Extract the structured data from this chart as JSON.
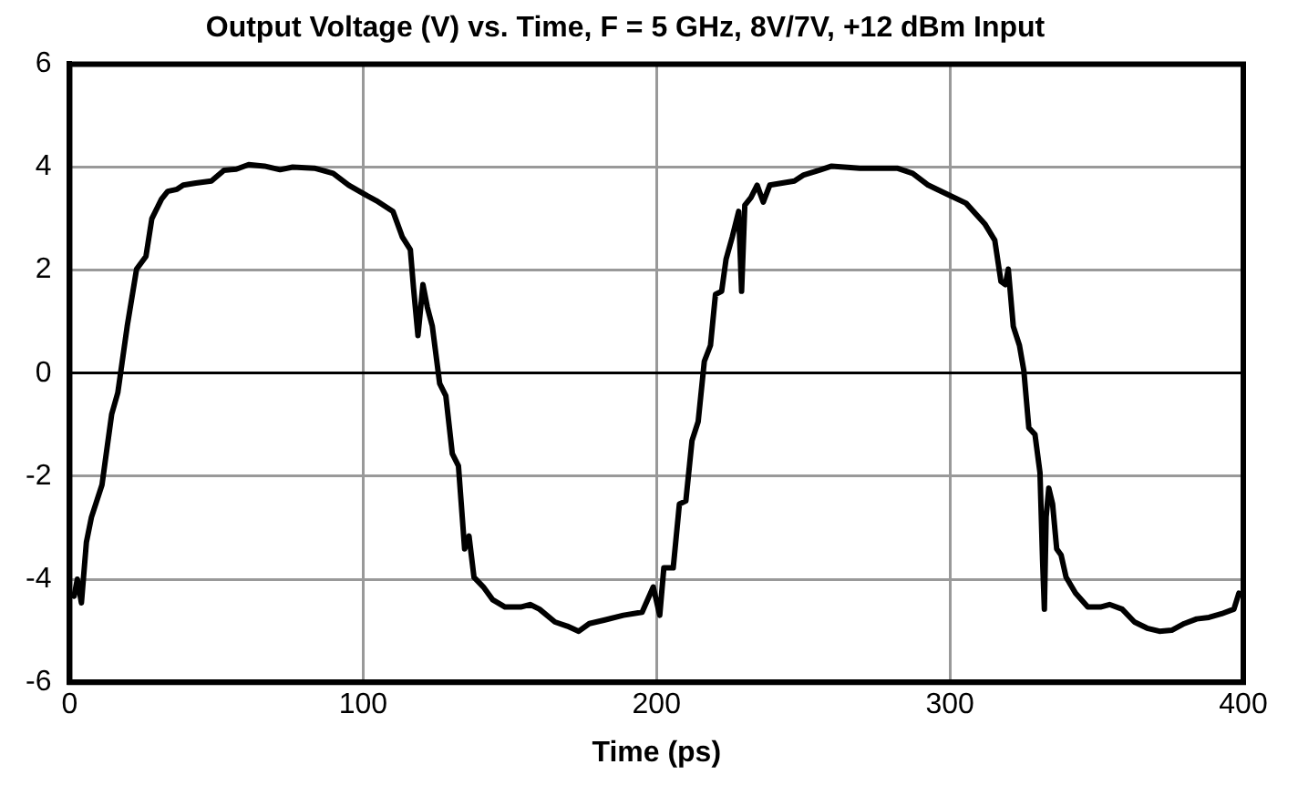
{
  "chart_data": {
    "type": "line",
    "title": "Output Voltage (V) vs. Time, F = 5 GHz, 8V/7V, +12 dBm Input",
    "xlabel": "Time (ps)",
    "xlim": [
      0,
      400
    ],
    "xticks": [
      0,
      100,
      200,
      300,
      400
    ],
    "ylim": [
      -6,
      6
    ],
    "yticks": [
      -6,
      -4,
      -2,
      0,
      2,
      4,
      6
    ],
    "grid": true,
    "legend": false,
    "marker": "none",
    "line_style": "solid",
    "series": [
      {
        "color": "#000000",
        "x": [
          1.5,
          2.6,
          4,
          5.7,
          7.4,
          11,
          14.3,
          16.4,
          19.6,
          22.8,
          26,
          28,
          31.3,
          33.4,
          36.6,
          38.7,
          43,
          48.3,
          52.6,
          56.8,
          61,
          66.4,
          71.7,
          76,
          83.4,
          89.8,
          95.1,
          101.5,
          104.5,
          110.2,
          113.4,
          116.1,
          117.2,
          118.7,
          120.4,
          121.9,
          123.6,
          126.1,
          128.2,
          130.4,
          132.5,
          134.6,
          136.1,
          137.8,
          141,
          144.2,
          148.4,
          153.7,
          156.9,
          160.1,
          165.4,
          169.6,
          173.5,
          177.1,
          182.4,
          188.7,
          195.1,
          198.9,
          201.1,
          202.5,
          205.7,
          207.8,
          210,
          212.1,
          214.2,
          216.3,
          218.4,
          220.1,
          222.2,
          223.7,
          225.8,
          228,
          229,
          230.1,
          232.2,
          234.3,
          236.4,
          238.6,
          242.8,
          247,
          250.2,
          255.5,
          259.7,
          264,
          269.3,
          275.6,
          282,
          287.3,
          292.6,
          298.9,
          305.5,
          312,
          315.3,
          317.4,
          318.9,
          319.9,
          321.6,
          323.7,
          325.2,
          326.9,
          329,
          330.7,
          331.6,
          332.2,
          332.8,
          333.7,
          335,
          336.4,
          337.9,
          339.6,
          342.8,
          347,
          351.3,
          354.4,
          358.7,
          362.9,
          367.2,
          371.4,
          375.6,
          379.9,
          384.1,
          388.3,
          392.6,
          396.8,
          398.5
        ],
        "values": [
          -4.33,
          -4.0,
          -4.46,
          -3.28,
          -2.8,
          -2.17,
          -0.8,
          -0.38,
          0.91,
          2.02,
          2.27,
          3.0,
          3.38,
          3.53,
          3.57,
          3.65,
          3.69,
          3.73,
          3.94,
          3.96,
          4.05,
          4.02,
          3.95,
          4.0,
          3.98,
          3.88,
          3.65,
          3.44,
          3.35,
          3.14,
          2.64,
          2.4,
          1.65,
          0.73,
          1.72,
          1.28,
          0.91,
          -0.2,
          -0.44,
          -1.56,
          -1.8,
          -3.41,
          -3.16,
          -3.96,
          -4.15,
          -4.4,
          -4.54,
          -4.54,
          -4.49,
          -4.58,
          -4.83,
          -4.91,
          -5.01,
          -4.86,
          -4.79,
          -4.7,
          -4.64,
          -4.15,
          -4.7,
          -3.78,
          -3.78,
          -2.54,
          -2.48,
          -1.31,
          -0.94,
          0.23,
          0.54,
          1.53,
          1.59,
          2.21,
          2.64,
          3.14,
          1.59,
          3.26,
          3.41,
          3.65,
          3.32,
          3.65,
          3.69,
          3.73,
          3.85,
          3.94,
          4.02,
          4.0,
          3.98,
          3.98,
          3.98,
          3.88,
          3.65,
          3.48,
          3.3,
          2.89,
          2.58,
          1.78,
          1.72,
          2.02,
          0.91,
          0.54,
          0.05,
          -1.06,
          -1.19,
          -1.93,
          -3.65,
          -4.58,
          -2.79,
          -2.23,
          -2.54,
          -3.41,
          -3.53,
          -3.96,
          -4.27,
          -4.54,
          -4.54,
          -4.49,
          -4.58,
          -4.83,
          -4.95,
          -5.01,
          -4.99,
          -4.86,
          -4.77,
          -4.74,
          -4.67,
          -4.58,
          -4.27
        ]
      }
    ]
  }
}
